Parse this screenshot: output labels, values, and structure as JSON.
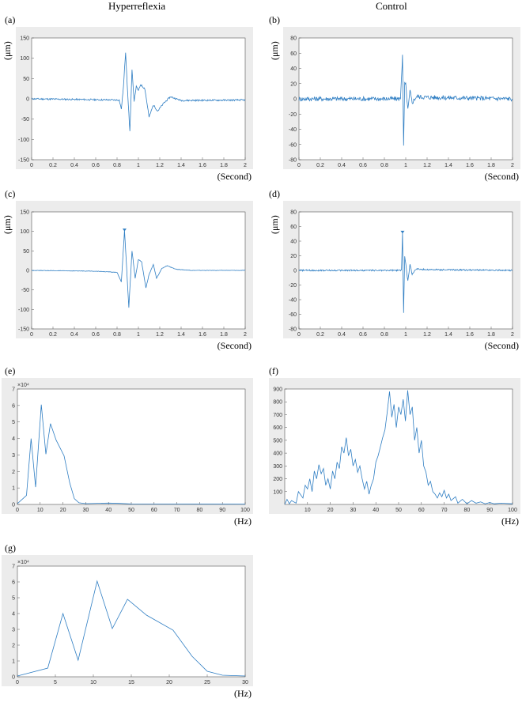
{
  "figure": {
    "col_left_title": "Hyperreflexia",
    "col_right_title": "Control",
    "accent_color": "#2f7ec3"
  },
  "chart_data": [
    {
      "id": "a",
      "panel_label": "(a)",
      "type": "line",
      "ylabel": "(μm)",
      "xlabel": "(Second)",
      "xlim": [
        0,
        2
      ],
      "ylim": [
        -150,
        150
      ],
      "xticks": [
        0,
        0.2,
        0.4,
        0.6,
        0.8,
        1,
        1.2,
        1.4,
        1.6,
        1.8,
        2
      ],
      "yticks": [
        -150,
        -100,
        -50,
        0,
        50,
        100,
        150
      ],
      "noise": 2,
      "series": [
        {
          "points": [
            [
              0,
              0
            ],
            [
              0.82,
              -3
            ],
            [
              0.84,
              -25
            ],
            [
              0.86,
              30
            ],
            [
              0.88,
              115
            ],
            [
              0.9,
              10
            ],
            [
              0.92,
              -80
            ],
            [
              0.94,
              70
            ],
            [
              0.96,
              -5
            ],
            [
              0.98,
              30
            ],
            [
              1.0,
              20
            ],
            [
              1.02,
              35
            ],
            [
              1.06,
              25
            ],
            [
              1.1,
              -45
            ],
            [
              1.14,
              -15
            ],
            [
              1.18,
              -30
            ],
            [
              1.24,
              -10
            ],
            [
              1.3,
              5
            ],
            [
              1.4,
              -4
            ],
            [
              2,
              -3
            ]
          ]
        }
      ]
    },
    {
      "id": "b",
      "panel_label": "(b)",
      "type": "line",
      "ylabel": "(μm)",
      "xlabel": "(Second)",
      "xlim": [
        0,
        2
      ],
      "ylim": [
        -80,
        80
      ],
      "xticks": [
        0,
        0.2,
        0.4,
        0.6,
        0.8,
        1,
        1.2,
        1.4,
        1.6,
        1.8,
        2
      ],
      "yticks": [
        -80,
        -60,
        -40,
        -20,
        0,
        20,
        40,
        60,
        80
      ],
      "noise": 3,
      "series": [
        {
          "points": [
            [
              0,
              0
            ],
            [
              0.9,
              0
            ],
            [
              0.95,
              0
            ],
            [
              0.97,
              57
            ],
            [
              0.98,
              -63
            ],
            [
              0.99,
              20
            ],
            [
              1.0,
              18
            ],
            [
              1.02,
              -15
            ],
            [
              1.04,
              10
            ],
            [
              1.06,
              -5
            ],
            [
              1.1,
              3
            ],
            [
              1.2,
              2
            ],
            [
              2,
              0
            ]
          ]
        }
      ]
    },
    {
      "id": "c",
      "panel_label": "(c)",
      "type": "line",
      "ylabel": "(μm)",
      "xlabel": "(Second)",
      "xlim": [
        0,
        2
      ],
      "ylim": [
        -150,
        150
      ],
      "xticks": [
        0,
        0.2,
        0.4,
        0.6,
        0.8,
        1,
        1.2,
        1.4,
        1.6,
        1.8,
        2
      ],
      "yticks": [
        -150,
        -100,
        -50,
        0,
        50,
        100,
        150
      ],
      "noise": 0.5,
      "peak": [
        0.87,
        103
      ],
      "series": [
        {
          "points": [
            [
              0,
              0
            ],
            [
              0.6,
              -2
            ],
            [
              0.8,
              -5
            ],
            [
              0.84,
              -30
            ],
            [
              0.87,
              103
            ],
            [
              0.91,
              -95
            ],
            [
              0.94,
              50
            ],
            [
              0.97,
              -20
            ],
            [
              1.0,
              28
            ],
            [
              1.03,
              22
            ],
            [
              1.07,
              -45
            ],
            [
              1.1,
              -10
            ],
            [
              1.14,
              15
            ],
            [
              1.17,
              -20
            ],
            [
              1.22,
              5
            ],
            [
              1.27,
              12
            ],
            [
              1.35,
              3
            ],
            [
              1.5,
              0
            ],
            [
              2,
              0
            ]
          ]
        }
      ]
    },
    {
      "id": "d",
      "panel_label": "(d)",
      "type": "line",
      "ylabel": "(μm)",
      "xlabel": "(Second)",
      "xlim": [
        0,
        2
      ],
      "ylim": [
        -80,
        80
      ],
      "xticks": [
        0,
        0.2,
        0.4,
        0.6,
        0.8,
        1,
        1.2,
        1.4,
        1.6,
        1.8,
        2
      ],
      "yticks": [
        -80,
        -60,
        -40,
        -20,
        0,
        20,
        40,
        60,
        80
      ],
      "noise": 1,
      "peak": [
        0.97,
        52
      ],
      "series": [
        {
          "points": [
            [
              0,
              0
            ],
            [
              0.9,
              0
            ],
            [
              0.96,
              0
            ],
            [
              0.97,
              52
            ],
            [
              0.98,
              -58
            ],
            [
              0.99,
              20
            ],
            [
              1.0,
              10
            ],
            [
              1.02,
              -15
            ],
            [
              1.04,
              8
            ],
            [
              1.06,
              -5
            ],
            [
              1.1,
              2
            ],
            [
              1.2,
              1
            ],
            [
              2,
              0
            ]
          ]
        }
      ]
    },
    {
      "id": "e",
      "panel_label": "(e)",
      "type": "line",
      "xlabel": "(Hz)",
      "xlim": [
        0,
        100
      ],
      "ylim": [
        0,
        7
      ],
      "xticks": [
        0,
        10,
        20,
        30,
        40,
        50,
        60,
        70,
        80,
        90,
        100
      ],
      "yticks": [
        0,
        1,
        2,
        3,
        4,
        5,
        6,
        7
      ],
      "exponent": "×10⁴",
      "noise": 0,
      "series": [
        {
          "points": [
            [
              0,
              0.05
            ],
            [
              4,
              0.55
            ],
            [
              6,
              4.0
            ],
            [
              8,
              1.05
            ],
            [
              10.5,
              6.05
            ],
            [
              12.5,
              3.05
            ],
            [
              14.5,
              4.9
            ],
            [
              17,
              3.9
            ],
            [
              20.5,
              2.95
            ],
            [
              23,
              1.3
            ],
            [
              25,
              0.35
            ],
            [
              27,
              0.1
            ],
            [
              30,
              0.05
            ],
            [
              40,
              0.08
            ],
            [
              45,
              0.06
            ],
            [
              50,
              0.03
            ],
            [
              100,
              0.02
            ]
          ]
        }
      ]
    },
    {
      "id": "f",
      "panel_label": "(f)",
      "type": "line",
      "xlabel": "(Hz)",
      "xlim": [
        0,
        100
      ],
      "ylim": [
        0,
        900
      ],
      "xticks": [
        10,
        20,
        30,
        40,
        50,
        60,
        70,
        80,
        90,
        100
      ],
      "yticks": [
        100,
        200,
        300,
        400,
        500,
        600,
        700,
        800,
        900
      ],
      "noise": 0,
      "series": [
        {
          "points": [
            [
              0,
              0
            ],
            [
              1,
              40
            ],
            [
              2,
              5
            ],
            [
              3,
              30
            ],
            [
              5,
              10
            ],
            [
              6,
              100
            ],
            [
              8,
              50
            ],
            [
              9,
              150
            ],
            [
              10,
              120
            ],
            [
              11,
              200
            ],
            [
              12,
              100
            ],
            [
              13,
              260
            ],
            [
              14,
              200
            ],
            [
              15,
              310
            ],
            [
              16,
              240
            ],
            [
              17,
              280
            ],
            [
              18,
              150
            ],
            [
              19,
              200
            ],
            [
              20,
              120
            ],
            [
              21,
              260
            ],
            [
              22,
              200
            ],
            [
              23,
              330
            ],
            [
              24,
              280
            ],
            [
              25,
              450
            ],
            [
              26,
              400
            ],
            [
              27,
              520
            ],
            [
              28,
              380
            ],
            [
              29,
              430
            ],
            [
              30,
              300
            ],
            [
              31,
              350
            ],
            [
              32,
              250
            ],
            [
              33,
              300
            ],
            [
              34,
              200
            ],
            [
              35,
              120
            ],
            [
              36,
              180
            ],
            [
              37,
              80
            ],
            [
              38,
              150
            ],
            [
              39,
              200
            ],
            [
              40,
              330
            ],
            [
              41,
              380
            ],
            [
              42,
              450
            ],
            [
              43,
              520
            ],
            [
              44,
              580
            ],
            [
              45,
              720
            ],
            [
              46,
              880
            ],
            [
              47,
              680
            ],
            [
              48,
              780
            ],
            [
              49,
              600
            ],
            [
              50,
              760
            ],
            [
              51,
              700
            ],
            [
              52,
              820
            ],
            [
              53,
              650
            ],
            [
              54,
              890
            ],
            [
              55,
              700
            ],
            [
              56,
              760
            ],
            [
              57,
              500
            ],
            [
              58,
              600
            ],
            [
              59,
              400
            ],
            [
              60,
              500
            ],
            [
              61,
              300
            ],
            [
              62,
              250
            ],
            [
              63,
              150
            ],
            [
              64,
              180
            ],
            [
              65,
              100
            ],
            [
              66,
              80
            ],
            [
              67,
              50
            ],
            [
              68,
              90
            ],
            [
              69,
              60
            ],
            [
              70,
              110
            ],
            [
              71,
              50
            ],
            [
              72,
              80
            ],
            [
              73,
              30
            ],
            [
              75,
              60
            ],
            [
              76,
              10
            ],
            [
              78,
              40
            ],
            [
              80,
              5
            ],
            [
              82,
              30
            ],
            [
              84,
              10
            ],
            [
              86,
              20
            ],
            [
              88,
              5
            ],
            [
              90,
              15
            ],
            [
              92,
              5
            ],
            [
              95,
              10
            ],
            [
              100,
              5
            ]
          ]
        }
      ]
    },
    {
      "id": "g",
      "panel_label": "(g)",
      "type": "line",
      "xlabel": "(Hz)",
      "xlim": [
        0,
        30
      ],
      "ylim": [
        0,
        7
      ],
      "xticks": [
        0,
        5,
        10,
        15,
        20,
        25,
        30
      ],
      "yticks": [
        0,
        1,
        2,
        3,
        4,
        5,
        6,
        7
      ],
      "exponent": "×10⁴",
      "noise": 0,
      "series": [
        {
          "points": [
            [
              0,
              0.05
            ],
            [
              4,
              0.55
            ],
            [
              6,
              4.0
            ],
            [
              8,
              1.05
            ],
            [
              10.5,
              6.05
            ],
            [
              12.5,
              3.05
            ],
            [
              14.5,
              4.9
            ],
            [
              17,
              3.9
            ],
            [
              20.5,
              2.95
            ],
            [
              23,
              1.3
            ],
            [
              25,
              0.35
            ],
            [
              27,
              0.1
            ],
            [
              30,
              0.05
            ]
          ]
        }
      ]
    }
  ]
}
